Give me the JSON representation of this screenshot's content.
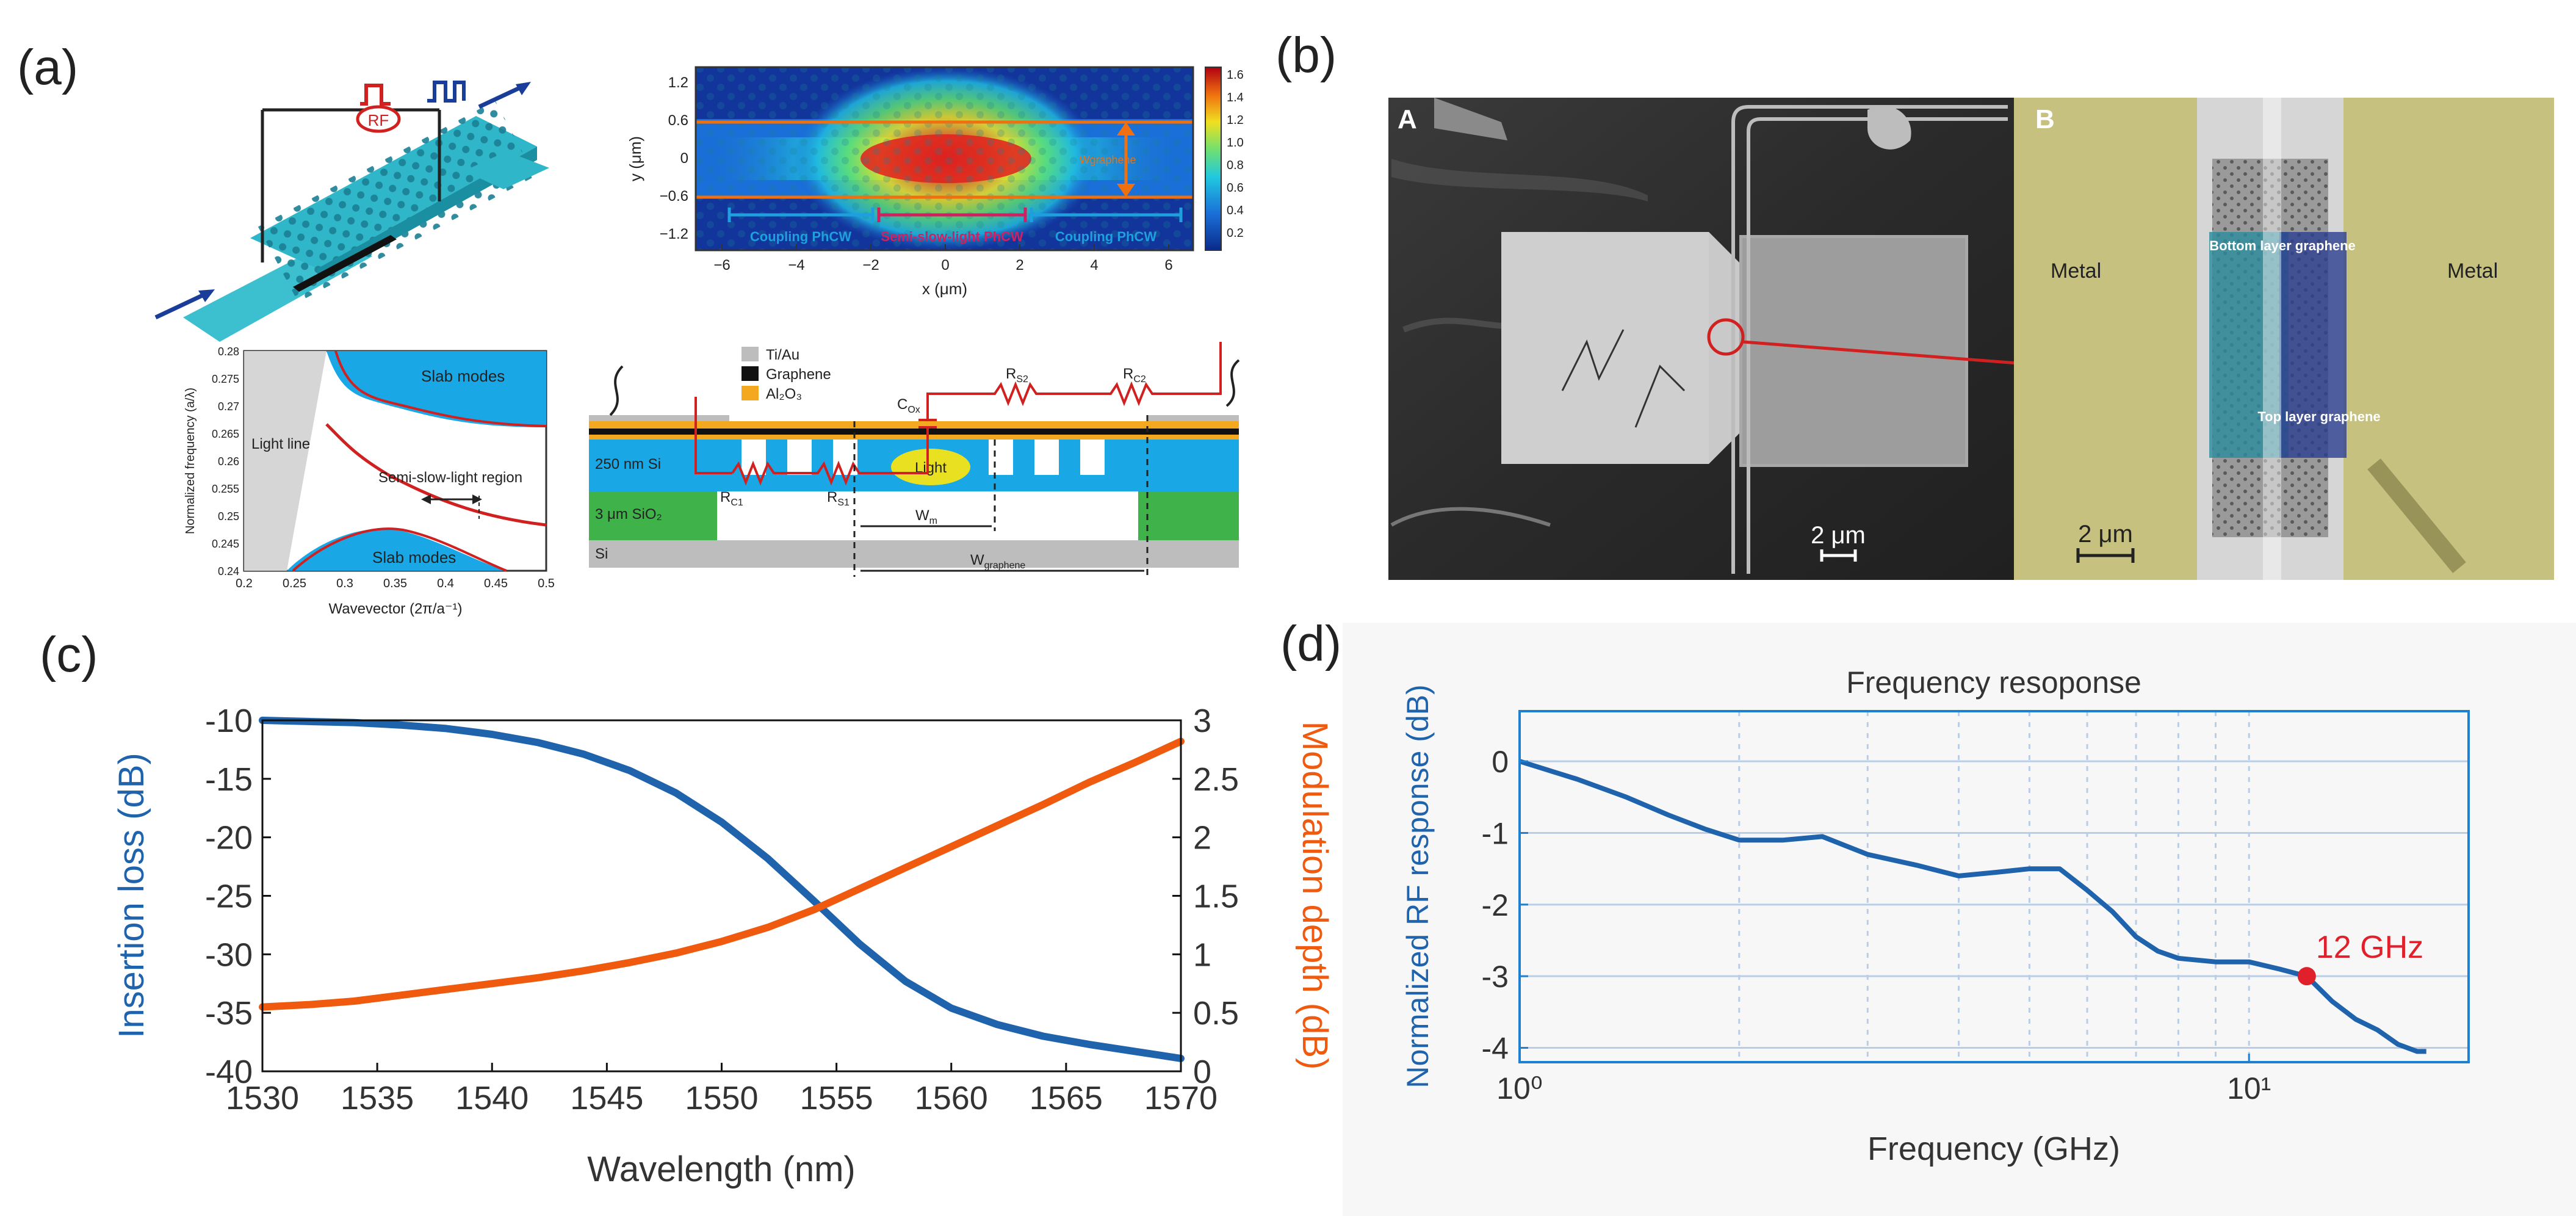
{
  "panel_labels": {
    "a": "(a)",
    "b": "(b)",
    "c": "(c)",
    "d": "(d)"
  },
  "colors": {
    "blue": "#1f63ac",
    "orange": "#f05a0f",
    "red": "#e0202a",
    "grid": "#b9cde6"
  },
  "panel_a": {
    "device": {},
    "heatmap": {
      "ylabel": "y (μm)",
      "xlabel": "x (μm)",
      "xticks": [
        "−6",
        "−4",
        "−2",
        "0",
        "2",
        "4",
        "6"
      ],
      "yticks": [
        "1.2",
        "0.6",
        "0",
        "−0.6",
        "−1.2"
      ],
      "colorbar_ticks": [
        "1.6",
        "1.4",
        "1.2",
        "1.0",
        "0.8",
        "0.6",
        "0.4",
        "0.2"
      ],
      "labels": [
        "Coupling PhCW",
        "Semi-slow-light PhCW",
        "Coupling PhCW"
      ],
      "width_label": "Wgraphene"
    },
    "band": {
      "ylabel": "Normalized frequency (a/λ)",
      "xlabel": "Wavevector (2π/a⁻¹)",
      "xticks": [
        "0.2",
        "0.25",
        "0.3",
        "0.35",
        "0.4",
        "0.45",
        "0.5"
      ],
      "yticks": [
        "0.28",
        "0.275",
        "0.27",
        "0.265",
        "0.26",
        "0.255",
        "0.25",
        "0.245",
        "0.24"
      ],
      "labels": {
        "slab_top": "Slab modes",
        "slab_bottom": "Slab modes",
        "light_line": "Light line",
        "region": "Semi-slow-light region"
      }
    },
    "cross_section": {
      "legend": [
        "Ti/Au",
        "Graphene",
        "Al₂O₃"
      ],
      "layers": [
        "250 nm Si",
        "3 μm SiO₂",
        "Si"
      ],
      "light": "Light",
      "circuit": {
        "c": "C",
        "c_sub": "Ox",
        "rs2": "R",
        "rs2_sub": "S2",
        "rc2": "R",
        "rc2_sub": "C2",
        "rs1": "R",
        "rs1_sub": "S1",
        "rc1": "R",
        "rc1_sub": "C1"
      },
      "dims": {
        "wm": "W",
        "wm_sub": "m",
        "wg": "W",
        "wg_sub": "graphene"
      }
    }
  },
  "panel_b": {
    "A": {
      "tag": "A",
      "scale": "2 μm"
    },
    "B": {
      "tag": "B",
      "scale": "2 μm",
      "metal_left": "Metal",
      "metal_right": "Metal",
      "bottom_layer": "Bottom layer graphene",
      "top_layer": "Top layer graphene"
    }
  },
  "chart_data": [
    {
      "type": "line",
      "title": "",
      "xlabel": "Wavelength (nm)",
      "ylabel": "Insertion loss (dB)",
      "ylabel_right": "Modulation depth (dB)",
      "xlim": [
        1530,
        1570
      ],
      "ylim": [
        -40,
        -10
      ],
      "ylim_right": [
        0,
        3
      ],
      "xticks": [
        1530,
        1535,
        1540,
        1545,
        1550,
        1555,
        1560,
        1565,
        1570
      ],
      "yticks": [
        -10,
        -15,
        -20,
        -25,
        -30,
        -35,
        -40
      ],
      "yticks_right": [
        3,
        2.5,
        2,
        1.5,
        1,
        0.5,
        0
      ],
      "series": [
        {
          "name": "Insertion loss",
          "axis": "left",
          "x": [
            1530,
            1532,
            1534,
            1536,
            1538,
            1540,
            1542,
            1544,
            1546,
            1548,
            1550,
            1552,
            1554,
            1556,
            1558,
            1560,
            1562,
            1564,
            1566,
            1568,
            1570
          ],
          "y": [
            -10.0,
            -10.1,
            -10.2,
            -10.4,
            -10.7,
            -11.2,
            -11.9,
            -12.9,
            -14.3,
            -16.2,
            -18.7,
            -21.8,
            -25.4,
            -29.1,
            -32.3,
            -34.6,
            -36.0,
            -37.0,
            -37.7,
            -38.3,
            -38.9
          ]
        },
        {
          "name": "Modulation depth",
          "axis": "right",
          "x": [
            1530,
            1532,
            1534,
            1536,
            1538,
            1540,
            1542,
            1544,
            1546,
            1548,
            1550,
            1552,
            1554,
            1556,
            1558,
            1560,
            1562,
            1564,
            1566,
            1568,
            1570
          ],
          "y": [
            0.55,
            0.57,
            0.6,
            0.65,
            0.7,
            0.75,
            0.8,
            0.86,
            0.93,
            1.01,
            1.11,
            1.23,
            1.38,
            1.56,
            1.74,
            1.92,
            2.1,
            2.28,
            2.47,
            2.64,
            2.82
          ]
        }
      ]
    },
    {
      "type": "line",
      "title": "Frequency resoponse",
      "xlabel": "Frequency (GHz)",
      "ylabel": "Normalized RF response (dB)",
      "xscale": "log",
      "xlim": [
        1,
        20
      ],
      "ylim": [
        -4.2,
        0.7
      ],
      "xtick_labels": [
        "10⁰",
        "10¹"
      ],
      "yticks": [
        0,
        -1,
        -2,
        -3,
        -4
      ],
      "series": [
        {
          "name": "RF response",
          "x": [
            1,
            1.2,
            1.4,
            1.6,
            1.8,
            2,
            2.3,
            2.6,
            3,
            3.5,
            4,
            4.5,
            5,
            5.5,
            6,
            6.5,
            7,
            7.5,
            8,
            9,
            10,
            11,
            12,
            13,
            14,
            15,
            16,
            17,
            17.5
          ],
          "y": [
            0,
            -0.25,
            -0.5,
            -0.75,
            -0.95,
            -1.1,
            -1.1,
            -1.05,
            -1.3,
            -1.45,
            -1.6,
            -1.55,
            -1.5,
            -1.5,
            -1.8,
            -2.1,
            -2.45,
            -2.65,
            -2.75,
            -2.8,
            -2.8,
            -2.9,
            -3.0,
            -3.35,
            -3.6,
            -3.75,
            -3.95,
            -4.05,
            -4.05
          ]
        }
      ],
      "annotation": {
        "label": "12 GHz",
        "x": 12,
        "y": -3.0
      }
    }
  ]
}
